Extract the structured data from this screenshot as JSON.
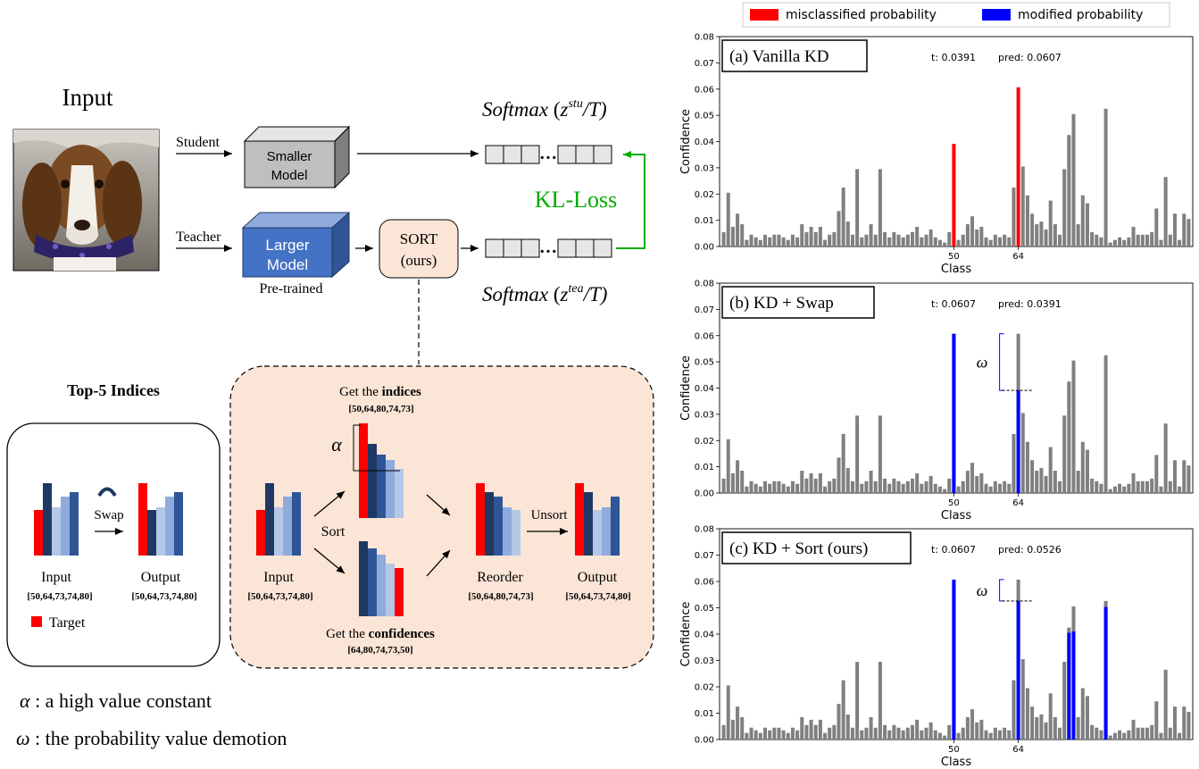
{
  "pipeline": {
    "input_label": "Input",
    "student_label": "Student",
    "teacher_label": "Teacher",
    "smaller_model": [
      "Smaller",
      "Model"
    ],
    "larger_model": [
      "Larger",
      "Model"
    ],
    "pretrained": "Pre-trained",
    "sort_box": [
      "SORT",
      "(ours)"
    ],
    "kl_loss": "KL-Loss",
    "softmax": "Softmax",
    "stu_sup": "stu",
    "tea_sup": "tea",
    "over_t": "/T)",
    "open_paren": "(",
    "z": "z",
    "dots": "…"
  },
  "top5": {
    "title": "Top-5 Indices",
    "swap": "Swap",
    "input": "Input",
    "input_idx": "[50,64,73,74,80]",
    "output": "Output",
    "output_idx": "[50,64,73,74,80]",
    "target": "Target"
  },
  "sort_panel": {
    "get_indices_pre": "Get the ",
    "get_indices_bold": "indices",
    "indices": "[50,64,80,74,73]",
    "alpha": "α",
    "sort": "Sort",
    "input": "Input",
    "input_idx": "[50,64,73,74,80]",
    "get_conf_pre": "Get the ",
    "get_conf_bold": "confidences",
    "confidences": "[64,80,74,73,50]",
    "reorder": "Reorder",
    "reorder_idx": "[50,64,80,74,73]",
    "unsort": "Unsort",
    "output": "Output",
    "output_idx": "[50,64,73,74,80]"
  },
  "legend_notes": {
    "alpha_sym": "α",
    "alpha_text": " : a high value constant",
    "omega_sym": "ω",
    "omega_text": " : the probability value demotion"
  },
  "colors": {
    "red": "#ff0000",
    "blue": "#0000ff",
    "gray": "#808080",
    "model_blue": "#4472c4",
    "green": "#00aa00",
    "panel_fill": "#fbe5d6",
    "navy": "#1f3864",
    "mid_blue": "#2f5597",
    "light_blue": "#b4c7e7",
    "soft_blue": "#8faadc"
  },
  "chart_data": [
    {
      "type": "bar",
      "title": "(a) Vanilla KD",
      "t_text": "t: 0.0391",
      "pred_text": "pred: 0.0607",
      "xlabel": "Class",
      "ylabel": "Confidence",
      "ylim": [
        0,
        0.08
      ],
      "yticks": [
        "0.00",
        "0.01",
        "0.02",
        "0.03",
        "0.04",
        "0.05",
        "0.06",
        "0.07",
        "0.08"
      ],
      "xticks": [
        {
          "index": 50,
          "label": "50"
        },
        {
          "index": 64,
          "label": "64"
        }
      ],
      "values": [
        0.0055,
        0.0205,
        0.0075,
        0.0125,
        0.0085,
        0.0025,
        0.0045,
        0.0035,
        0.0025,
        0.0045,
        0.0035,
        0.0045,
        0.0045,
        0.0035,
        0.0025,
        0.0045,
        0.0035,
        0.0085,
        0.0055,
        0.0075,
        0.0055,
        0.0075,
        0.0025,
        0.0045,
        0.0055,
        0.0135,
        0.0225,
        0.0095,
        0.0045,
        0.0295,
        0.0035,
        0.0045,
        0.0085,
        0.0045,
        0.0295,
        0.0055,
        0.0035,
        0.0055,
        0.0045,
        0.0035,
        0.0045,
        0.0055,
        0.0075,
        0.0035,
        0.0045,
        0.0065,
        0.0035,
        0.0025,
        0.0015,
        0.0055,
        0.0391,
        0.0025,
        0.0045,
        0.0085,
        0.0115,
        0.0065,
        0.0075,
        0.0035,
        0.0025,
        0.0045,
        0.0035,
        0.0045,
        0.0035,
        0.0225,
        0.0607,
        0.0305,
        0.0195,
        0.0125,
        0.0085,
        0.0095,
        0.0065,
        0.0175,
        0.0085,
        0.0045,
        0.0295,
        0.0425,
        0.0505,
        0.0085,
        0.0195,
        0.0165,
        0.0055,
        0.0045,
        0.0035,
        0.0525,
        0.0015,
        0.0025,
        0.0035,
        0.0025,
        0.0035,
        0.0075,
        0.0045,
        0.0045,
        0.0045,
        0.0055,
        0.0145,
        0.0025,
        0.0265,
        0.0045,
        0.0125,
        0.0025,
        0.0125,
        0.0105
      ],
      "highlights": [
        {
          "index": 50,
          "color": "red"
        },
        {
          "index": 64,
          "color": "red"
        }
      ]
    },
    {
      "type": "bar",
      "title": "(b) KD + Swap",
      "t_text": "t: 0.0607",
      "pred_text": "pred: 0.0391",
      "xlabel": "Class",
      "ylabel": "Confidence",
      "ylim": [
        0,
        0.08
      ],
      "yticks": [
        "0.00",
        "0.01",
        "0.02",
        "0.03",
        "0.04",
        "0.05",
        "0.06",
        "0.07",
        "0.08"
      ],
      "xticks": [
        {
          "index": 50,
          "label": "50"
        },
        {
          "index": 64,
          "label": "64"
        }
      ],
      "omega_label": "ω",
      "values": [
        0.0055,
        0.0205,
        0.0075,
        0.0125,
        0.0085,
        0.0025,
        0.0045,
        0.0035,
        0.0025,
        0.0045,
        0.0035,
        0.0045,
        0.0045,
        0.0035,
        0.0025,
        0.0045,
        0.0035,
        0.0085,
        0.0055,
        0.0075,
        0.0055,
        0.0075,
        0.0025,
        0.0045,
        0.0055,
        0.0135,
        0.0225,
        0.0095,
        0.0045,
        0.0295,
        0.0035,
        0.0045,
        0.0085,
        0.0045,
        0.0295,
        0.0055,
        0.0035,
        0.0055,
        0.0045,
        0.0035,
        0.0045,
        0.0055,
        0.0075,
        0.0035,
        0.0045,
        0.0065,
        0.0035,
        0.0025,
        0.0015,
        0.0055,
        0.0607,
        0.0025,
        0.0045,
        0.0085,
        0.0115,
        0.0065,
        0.0075,
        0.0035,
        0.0025,
        0.0045,
        0.0035,
        0.0045,
        0.0035,
        0.0225,
        0.0607,
        0.0305,
        0.0195,
        0.0125,
        0.0085,
        0.0095,
        0.0065,
        0.0175,
        0.0085,
        0.0045,
        0.0295,
        0.0425,
        0.0505,
        0.0085,
        0.0195,
        0.0165,
        0.0055,
        0.0045,
        0.0035,
        0.0525,
        0.0015,
        0.0025,
        0.0035,
        0.0025,
        0.0035,
        0.0075,
        0.0045,
        0.0045,
        0.0045,
        0.0055,
        0.0145,
        0.0025,
        0.0265,
        0.0045,
        0.0125,
        0.0025,
        0.0125,
        0.0105
      ],
      "overlays": [
        {
          "index": 50,
          "value": 0.0607,
          "color": "blue"
        },
        {
          "index": 64,
          "value": 0.0391,
          "color": "blue"
        }
      ],
      "omega": {
        "index": 64,
        "top": 0.0607,
        "bottom": 0.0391
      }
    },
    {
      "type": "bar",
      "title": "(c) KD + Sort (ours)",
      "t_text": "t: 0.0607",
      "pred_text": "pred: 0.0526",
      "xlabel": "Class",
      "ylabel": "Confidence",
      "ylim": [
        0,
        0.08
      ],
      "yticks": [
        "0.00",
        "0.01",
        "0.02",
        "0.03",
        "0.04",
        "0.05",
        "0.06",
        "0.07",
        "0.08"
      ],
      "xticks": [
        {
          "index": 50,
          "label": "50"
        },
        {
          "index": 64,
          "label": "64"
        }
      ],
      "omega_label": "ω",
      "values": [
        0.0055,
        0.0205,
        0.0075,
        0.0125,
        0.0085,
        0.0025,
        0.0045,
        0.0035,
        0.0025,
        0.0045,
        0.0035,
        0.0045,
        0.0045,
        0.0035,
        0.0025,
        0.0045,
        0.0035,
        0.0085,
        0.0055,
        0.0075,
        0.0055,
        0.0075,
        0.0025,
        0.0045,
        0.0055,
        0.0135,
        0.0225,
        0.0095,
        0.0045,
        0.0295,
        0.0035,
        0.0045,
        0.0085,
        0.0045,
        0.0295,
        0.0055,
        0.0035,
        0.0055,
        0.0045,
        0.0035,
        0.0045,
        0.0055,
        0.0075,
        0.0035,
        0.0045,
        0.0065,
        0.0035,
        0.0025,
        0.0015,
        0.0055,
        0.0607,
        0.0025,
        0.0045,
        0.0085,
        0.0115,
        0.0065,
        0.0075,
        0.0035,
        0.0025,
        0.0045,
        0.0035,
        0.0045,
        0.0035,
        0.0225,
        0.0607,
        0.0305,
        0.0195,
        0.0125,
        0.0085,
        0.0095,
        0.0065,
        0.0175,
        0.0085,
        0.0045,
        0.0295,
        0.0425,
        0.0505,
        0.0085,
        0.0195,
        0.0165,
        0.0055,
        0.0045,
        0.0035,
        0.0526,
        0.0015,
        0.0025,
        0.0035,
        0.0025,
        0.0035,
        0.0075,
        0.0045,
        0.0045,
        0.0045,
        0.0055,
        0.0145,
        0.0025,
        0.0265,
        0.0045,
        0.0125,
        0.0025,
        0.0125,
        0.0105
      ],
      "overlays": [
        {
          "index": 50,
          "value": 0.0607,
          "color": "blue"
        },
        {
          "index": 64,
          "value": 0.0526,
          "color": "blue"
        },
        {
          "index": 75,
          "value": 0.0405,
          "color": "blue"
        },
        {
          "index": 76,
          "value": 0.041,
          "color": "blue"
        },
        {
          "index": 83,
          "value": 0.0503,
          "color": "blue"
        }
      ],
      "omega": {
        "index": 64,
        "top": 0.0607,
        "bottom": 0.0526
      }
    }
  ],
  "chart_legend": {
    "placement": "top",
    "items": [
      {
        "label": "misclassified probability",
        "color": "#ff0000"
      },
      {
        "label": "modified probability",
        "color": "#0000ff"
      }
    ]
  }
}
